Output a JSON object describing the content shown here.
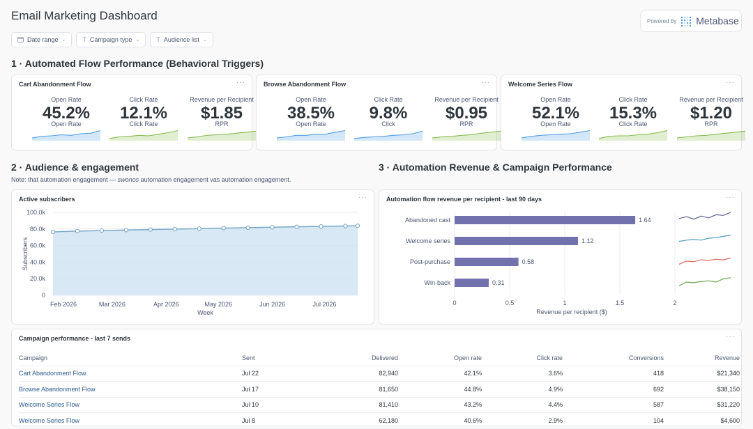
{
  "header": {
    "title": "Email Marketing Dashboard",
    "powered_by": "Powered by",
    "brand": "Metabase"
  },
  "filters": [
    {
      "label": "Date range",
      "icon": "calendar-icon"
    },
    {
      "label": "Campaign type",
      "icon": "text-filter-icon"
    },
    {
      "label": "Audience list",
      "icon": "text-filter-icon"
    }
  ],
  "sections": {
    "s1": "1 · Automated Flow Performance (Behavioral Triggers)",
    "s2": "2 · Audience & engagement",
    "s3": "3 · Automation Revenue & Campaign Performance",
    "note_prefix": "Note: that automation engagement — ",
    "note_italic": "swonos",
    "note_suffix": " automation engagement vas automation engagement."
  },
  "flow_cards": [
    {
      "title": "Cart Abandonment Flow",
      "kpis": [
        {
          "label": "Open Rate",
          "value": "45.2%",
          "sub": "Open Rate",
          "trend": [
            0.2,
            0.35,
            0.4,
            0.5,
            0.45,
            0.6,
            0.65,
            0.9
          ],
          "color": "#509ee3"
        },
        {
          "label": "Click Rate",
          "value": "12.1%",
          "sub": "Click Rate",
          "trend": [
            0.15,
            0.3,
            0.35,
            0.45,
            0.4,
            0.55,
            0.7,
            0.9
          ],
          "color": "#84bb4c"
        },
        {
          "label": "Revenue per Recipient",
          "value": "$1.85",
          "sub": "RPR",
          "trend": [
            0.2,
            0.3,
            0.45,
            0.5,
            0.55,
            0.65,
            0.75,
            0.85
          ],
          "color": "#84bb4c"
        }
      ]
    },
    {
      "title": "Browse Abandonment Flow",
      "kpis": [
        {
          "label": "Open Rate",
          "value": "38.5%",
          "sub": "Open Rate",
          "trend": [
            0.2,
            0.3,
            0.45,
            0.45,
            0.55,
            0.55,
            0.75,
            0.9
          ],
          "color": "#509ee3"
        },
        {
          "label": "Click Rate",
          "value": "9.8%",
          "sub": "Click",
          "trend": [
            0.15,
            0.25,
            0.3,
            0.35,
            0.45,
            0.5,
            0.6,
            0.85
          ],
          "color": "#509ee3"
        },
        {
          "label": "Revenue per Recipient",
          "value": "$0.95",
          "sub": "RPR",
          "trend": [
            0.2,
            0.3,
            0.35,
            0.45,
            0.5,
            0.65,
            0.75,
            0.85
          ],
          "color": "#84bb4c"
        }
      ]
    },
    {
      "title": "Welcome Series Flow",
      "kpis": [
        {
          "label": "Open Rate",
          "value": "52.1%",
          "sub": "Open Rate",
          "trend": [
            0.2,
            0.35,
            0.45,
            0.5,
            0.55,
            0.6,
            0.75,
            0.9
          ],
          "color": "#509ee3"
        },
        {
          "label": "Click Rate",
          "value": "15.3%",
          "sub": "Click Rate",
          "trend": [
            0.15,
            0.35,
            0.4,
            0.4,
            0.5,
            0.55,
            0.7,
            0.9
          ],
          "color": "#84bb4c"
        },
        {
          "label": "Revenue per Recipient",
          "value": "$1.20",
          "sub": "RPR",
          "trend": [
            0.2,
            0.3,
            0.4,
            0.45,
            0.55,
            0.65,
            0.75,
            0.85
          ],
          "color": "#84bb4c"
        }
      ]
    }
  ],
  "subscribers_card": {
    "title": "Active subscribers"
  },
  "revenue_card": {
    "title": "Automation flow revenue per recipient - last 90 days",
    "sparklines": [
      {
        "color": "#5a5f8c",
        "values": [
          0.4,
          0.55,
          0.35,
          0.6,
          0.45,
          0.7,
          0.65,
          0.9
        ]
      },
      {
        "color": "#4e9bc2",
        "values": [
          0.3,
          0.4,
          0.45,
          0.4,
          0.55,
          0.6,
          0.7,
          0.8
        ]
      },
      {
        "color": "#d96a5a",
        "values": [
          0.2,
          0.45,
          0.4,
          0.55,
          0.5,
          0.6,
          0.55,
          0.7
        ]
      },
      {
        "color": "#6aa84f",
        "values": [
          0.2,
          0.5,
          0.45,
          0.55,
          0.6,
          0.5,
          0.75,
          0.85
        ]
      }
    ]
  },
  "chart_data": [
    {
      "type": "line",
      "title": "Active subscribers",
      "xlabel": "Week",
      "ylabel": "Subscribers",
      "x_ticks": [
        "Feb 2026",
        "Mar 2026",
        "Apr 2026",
        "May 2026",
        "Jun 2026",
        "Jul 2026"
      ],
      "y_ticks": [
        "0",
        "20.0k",
        "40.0k",
        "60.0k",
        "80.0k",
        "100.0k"
      ],
      "ylim": [
        0,
        100000
      ],
      "x": [
        "2026-01-26",
        "2026-02-02",
        "2026-02-09",
        "2026-02-16",
        "2026-02-23",
        "2026-03-02",
        "2026-03-09",
        "2026-03-16",
        "2026-03-23",
        "2026-03-30",
        "2026-04-06",
        "2026-04-13",
        "2026-04-20",
        "2026-04-27",
        "2026-05-04",
        "2026-05-11",
        "2026-05-18",
        "2026-05-25",
        "2026-06-01",
        "2026-06-08",
        "2026-06-15",
        "2026-06-22",
        "2026-06-29",
        "2026-07-06",
        "2026-07-13",
        "2026-07-20"
      ],
      "values": [
        76500,
        77000,
        77400,
        77700,
        78100,
        78400,
        78700,
        79000,
        79300,
        79600,
        79900,
        80200,
        80500,
        80800,
        81100,
        81300,
        81600,
        81900,
        82100,
        82400,
        82600,
        82900,
        83100,
        83400,
        83600,
        83900
      ],
      "marker_every": 2,
      "grid": true,
      "line_color": "#79a8c9",
      "fill_color": "#cfe2f3"
    },
    {
      "type": "bar",
      "orientation": "horizontal",
      "title": "Automation flow revenue per recipient - last 90 days",
      "categories": [
        "Abandoned cast",
        "Welcome series",
        "Post-purchase",
        "Win-back"
      ],
      "values": [
        1.64,
        1.12,
        0.58,
        0.31
      ],
      "value_labels": [
        "1.64",
        "1.12",
        "0.58",
        "0.31"
      ],
      "xlabel": "Revenue per recipient ($)",
      "x_ticks": [
        "0",
        "0.5",
        "1",
        "1.5",
        "2"
      ],
      "xlim": [
        0,
        2
      ],
      "bar_color": "#7172ad",
      "grid": true
    }
  ],
  "campaign_table": {
    "title": "Campaign performance - last 7 sends",
    "columns": [
      "Campaign",
      "Sent",
      "Delivered",
      "Open rate",
      "Click rate",
      "Conversions",
      "Revenue"
    ],
    "rows": [
      [
        "Cart Abandonment Flow",
        "Jul 22",
        "82,940",
        "42.1%",
        "3.6%",
        "418",
        "$21,340"
      ],
      [
        "Browse Abandonment Flow",
        "Jul 17",
        "81,650",
        "44.8%",
        "4.9%",
        "692",
        "$38,150"
      ],
      [
        "Welcome Series Flow",
        "Jul 10",
        "81,410",
        "43.2%",
        "4.4%",
        "587",
        "$31,220"
      ],
      [
        "Welcome Series Flow",
        "Jul 8",
        "62,180",
        "40.6%",
        "2.9%",
        "104",
        "$4,600"
      ]
    ]
  },
  "colors": {
    "accent": "#509ee3",
    "positive": "#84bb4c",
    "bar": "#7172ad",
    "link": "#2c5c8f"
  }
}
